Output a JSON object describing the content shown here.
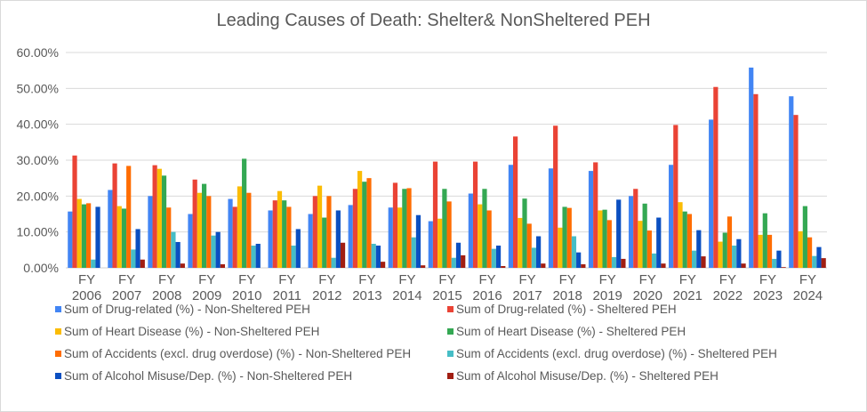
{
  "chart_data": {
    "type": "bar",
    "title": "Leading Causes of Death: Shelter& NonSheltered PEH",
    "xlabel": "",
    "ylabel": "",
    "ylim": [
      0,
      60
    ],
    "y_ticks": [
      "0.00%",
      "10.00%",
      "20.00%",
      "30.00%",
      "40.00%",
      "50.00%",
      "60.00%"
    ],
    "y_tick_values": [
      0,
      10,
      20,
      30,
      40,
      50,
      60
    ],
    "grid": true,
    "legend_position": "bottom",
    "categories": [
      "FY 2006",
      "FY 2007",
      "FY 2008",
      "FY 2009",
      "FY 2010",
      "FY 2011",
      "FY 2012",
      "FY 2013",
      "FY 2014",
      "FY 2015",
      "FY 2016",
      "FY 2017",
      "FY 2018",
      "FY 2019",
      "FY 2020",
      "FY 2021",
      "FY 2022",
      "FY 2023",
      "FY 2024"
    ],
    "category_lines": [
      [
        "FY",
        "2006"
      ],
      [
        "FY",
        "2007"
      ],
      [
        "FY",
        "2008"
      ],
      [
        "FY",
        "2009"
      ],
      [
        "FY",
        "2010"
      ],
      [
        "FY",
        "2011"
      ],
      [
        "FY",
        "2012"
      ],
      [
        "FY",
        "2013"
      ],
      [
        "FY",
        "2014"
      ],
      [
        "FY",
        "2015"
      ],
      [
        "FY",
        "2016"
      ],
      [
        "FY",
        "2017"
      ],
      [
        "FY",
        "2018"
      ],
      [
        "FY",
        "2019"
      ],
      [
        "FY",
        "2020"
      ],
      [
        "FY",
        "2021"
      ],
      [
        "FY",
        "2022"
      ],
      [
        "FY",
        "2023"
      ],
      [
        "FY",
        "2024"
      ]
    ],
    "series": [
      {
        "name": "Sum of Drug-related (%) - Non-Sheltered PEH",
        "color": "#4285f4",
        "values": [
          15.7,
          21.7,
          20.0,
          15.0,
          19.2,
          16.0,
          15.0,
          17.5,
          16.8,
          13.0,
          20.7,
          28.7,
          27.7,
          27.0,
          20.0,
          28.7,
          41.3,
          55.8,
          47.8
        ]
      },
      {
        "name": "Sum of Drug-related (%) - Sheltered PEH",
        "color": "#ea4335",
        "values": [
          31.3,
          29.1,
          28.6,
          24.6,
          17.0,
          18.8,
          20.0,
          22.0,
          23.7,
          29.6,
          29.6,
          36.6,
          39.6,
          29.4,
          22.0,
          39.8,
          50.4,
          48.4,
          42.6
        ]
      },
      {
        "name": "Sum of Heart Disease (%) - Non-Sheltered PEH",
        "color": "#fbbc04",
        "values": [
          19.2,
          17.2,
          27.6,
          20.9,
          22.7,
          21.4,
          22.9,
          27.0,
          16.8,
          13.7,
          17.7,
          13.9,
          11.2,
          16.0,
          13.1,
          18.3,
          7.3,
          9.2,
          10.2
        ]
      },
      {
        "name": "Sum of Heart Disease (%) - Sheltered PEH",
        "color": "#34a853",
        "values": [
          17.7,
          16.5,
          25.7,
          23.4,
          30.4,
          18.8,
          14.0,
          24.0,
          22.0,
          22.0,
          22.0,
          19.3,
          17.0,
          16.2,
          17.9,
          15.7,
          9.8,
          15.2,
          17.2
        ]
      },
      {
        "name": "Sum of Accidents (excl. drug overdose) (%) - Non-Sheltered PEH",
        "color": "#ff6d01",
        "values": [
          18.0,
          28.4,
          16.8,
          20.0,
          20.9,
          17.0,
          20.0,
          25.0,
          22.2,
          18.5,
          16.0,
          12.3,
          16.7,
          13.3,
          10.4,
          15.0,
          14.3,
          9.2,
          8.5
        ]
      },
      {
        "name": "Sum of Accidents (excl. drug overdose) (%) - Sheltered PEH",
        "color": "#46bdc6",
        "values": [
          2.3,
          5.1,
          10.0,
          9.0,
          6.2,
          6.2,
          2.8,
          6.7,
          8.5,
          2.8,
          5.3,
          5.6,
          8.8,
          3.0,
          4.0,
          4.8,
          6.2,
          2.5,
          3.3
        ]
      },
      {
        "name": "Sum of Alcohol Misuse/Dep. (%) - Non-Sheltered PEH",
        "color": "#0b4fc1",
        "values": [
          17.0,
          10.8,
          7.2,
          10.0,
          6.7,
          10.8,
          16.0,
          6.2,
          14.7,
          7.0,
          6.2,
          8.8,
          4.3,
          19.0,
          14.0,
          10.5,
          8.0,
          4.8,
          5.8
        ]
      },
      {
        "name": "Sum of Alcohol Misuse/Dep. (%) - Sheltered PEH",
        "color": "#a11e12",
        "values": [
          0.0,
          2.3,
          1.2,
          1.0,
          0.0,
          0.0,
          7.0,
          1.7,
          0.7,
          3.5,
          0.5,
          1.2,
          1.0,
          2.5,
          1.2,
          3.2,
          1.2,
          0.2,
          2.7
        ]
      }
    ]
  },
  "legend": {
    "items": [
      {
        "label": "Sum of Drug-related (%) - Non-Sheltered PEH",
        "color": "#4285f4"
      },
      {
        "label": "Sum of Drug-related (%) - Sheltered PEH",
        "color": "#ea4335"
      },
      {
        "label": "Sum of Heart Disease (%) - Non-Sheltered PEH",
        "color": "#fbbc04"
      },
      {
        "label": "Sum of Heart Disease (%) - Sheltered PEH",
        "color": "#34a853"
      },
      {
        "label": "Sum of Accidents (excl. drug overdose) (%) - Non-Sheltered PEH",
        "color": "#ff6d01"
      },
      {
        "label": "Sum of Accidents (excl. drug overdose) (%) - Sheltered PEH",
        "color": "#46bdc6"
      },
      {
        "label": "Sum of Alcohol Misuse/Dep. (%) - Non-Sheltered PEH",
        "color": "#0b4fc1"
      },
      {
        "label": "Sum of Alcohol Misuse/Dep. (%) - Sheltered PEH",
        "color": "#a11e12"
      }
    ]
  }
}
